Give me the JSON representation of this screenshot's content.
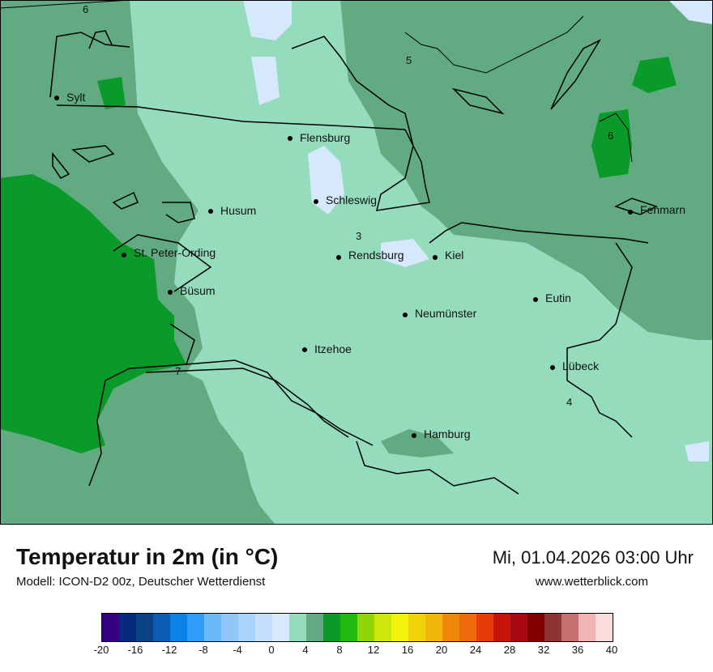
{
  "title": "Temperatur in 2m (in °C)",
  "model": "Modell: ICON-D2 00z, Deutscher Wetterdienst",
  "datetime": "Mi, 01.04.2026 03:00 Uhr",
  "website": "www.wetterblick.com",
  "colors": {
    "c0_2": "#d6e8fc",
    "c2_4": "#94dcbc",
    "c4_6": "#62aa82",
    "c6_8": "#0a9a2a"
  },
  "cities": [
    {
      "name": "Sylt"
    },
    {
      "name": "Flensburg"
    },
    {
      "name": "Husum"
    },
    {
      "name": "Schleswig"
    },
    {
      "name": "St. Peter-Ording"
    },
    {
      "name": "Rendsburg"
    },
    {
      "name": "Kiel"
    },
    {
      "name": "Fehmarn"
    },
    {
      "name": "Büsum"
    },
    {
      "name": "Eutin"
    },
    {
      "name": "Neumünster"
    },
    {
      "name": "Itzehoe"
    },
    {
      "name": "Lübeck"
    },
    {
      "name": "Hamburg"
    }
  ],
  "contour_labels": [
    "6",
    "5",
    "6",
    "3",
    "7",
    "4"
  ],
  "legend": {
    "colors": [
      "#33007f",
      "#052a7e",
      "#0a4288",
      "#0a5cb4",
      "#0a82e6",
      "#2e9cf8",
      "#6abaf8",
      "#8ec6fa",
      "#a8d4fc",
      "#c4e0fc",
      "#d6e8fc",
      "#94dcbc",
      "#62aa82",
      "#0a9a2a",
      "#22b80e",
      "#8ed60a",
      "#cce80a",
      "#f0f40a",
      "#f0d20a",
      "#f0b60a",
      "#f0860a",
      "#ee6a0a",
      "#e63c0a",
      "#c4140a",
      "#a80a14",
      "#800000",
      "#8e3434",
      "#c47070",
      "#f0b4b4",
      "#fadcdc"
    ],
    "ticks": [
      "-20",
      "-16",
      "-12",
      "-8",
      "-4",
      "0",
      "4",
      "8",
      "12",
      "16",
      "20",
      "24",
      "28",
      "32",
      "36",
      "40"
    ]
  }
}
